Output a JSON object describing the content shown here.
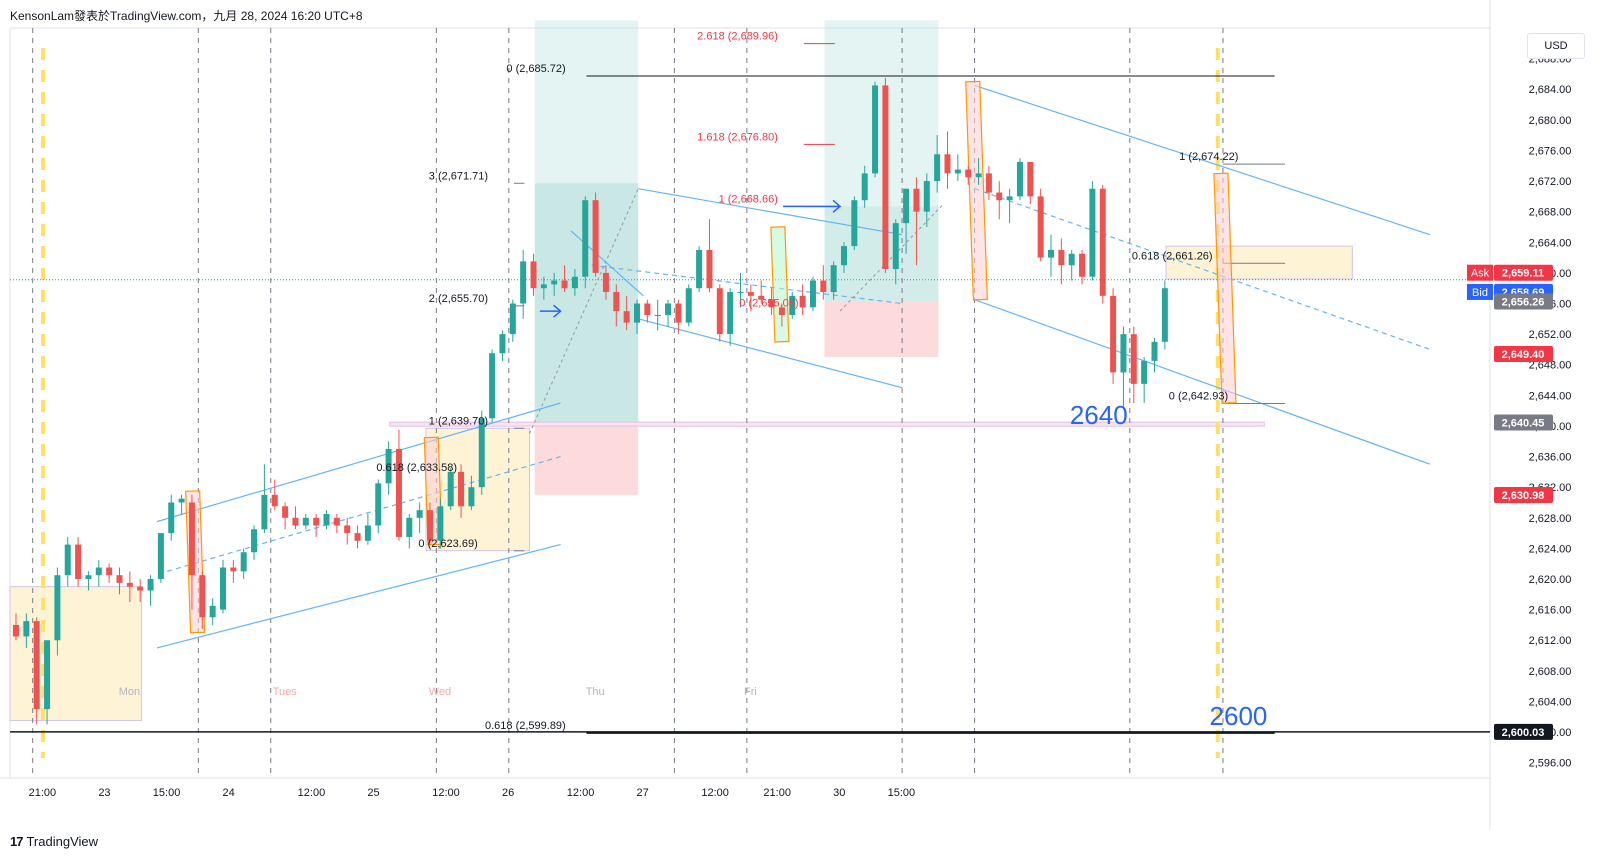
{
  "header": {
    "title": "KensonLam發表於TradingView.com，九月 28, 2024 16:20 UTC+8"
  },
  "footer": {
    "brand": "TradingView",
    "brand_mark": "17"
  },
  "colors": {
    "up": "#26a69a",
    "down": "#ef5350",
    "grid": "#f0f3fa",
    "channel": "#64b5f6",
    "target_zone": "#b2dfdb",
    "stop_zone": "#fccbcd",
    "order_block": "#fff3d6",
    "price_label_red": "#f23645",
    "price_label_gray": "#787b86",
    "bid_blue": "#2962ff"
  },
  "chart_data": {
    "type": "candlestick",
    "title": "",
    "currency_button": "USD",
    "ylim": [
      2594,
      2692
    ],
    "y_ticks": [
      2596,
      2600,
      2604,
      2608,
      2612,
      2616,
      2620,
      2624,
      2628,
      2632,
      2636,
      2640,
      2644,
      2648,
      2652,
      2656,
      2660,
      2664,
      2668,
      2672,
      2676,
      2680,
      2684,
      2688
    ],
    "x_labels": [
      "21:00",
      "23",
      "15:00",
      "24",
      "12:00",
      "25",
      "12:00",
      "26",
      "12:00",
      "27",
      "12:00",
      "21:00",
      "30",
      "15:00"
    ],
    "x_label_bars": [
      1,
      7,
      13,
      19,
      27,
      33,
      40,
      46,
      53,
      59,
      66,
      72,
      78,
      84
    ],
    "day_labels": [
      {
        "text": "Mon",
        "bar": 7
      },
      {
        "text": "Tues",
        "bar": 22
      },
      {
        "text": "Wed",
        "bar": 37
      },
      {
        "text": "Thu",
        "bar": 52
      },
      {
        "text": "Fri",
        "bar": 67
      }
    ],
    "candles": [
      [
        2614.0,
        2615.5,
        2612.0,
        2612.5
      ],
      [
        2612.5,
        2615.5,
        2611.0,
        2614.5
      ],
      [
        2614.5,
        2615.0,
        2601.0,
        2603.0
      ],
      [
        2603.0,
        2612.0,
        2601.0,
        2612.0
      ],
      [
        2612.0,
        2621.5,
        2610.0,
        2620.5
      ],
      [
        2620.5,
        2625.5,
        2619.0,
        2624.5
      ],
      [
        2624.5,
        2625.5,
        2619.0,
        2620.0
      ],
      [
        2620.0,
        2621.0,
        2618.5,
        2620.5
      ],
      [
        2620.5,
        2622.5,
        2619.0,
        2621.5
      ],
      [
        2621.5,
        2622.0,
        2619.5,
        2620.5
      ],
      [
        2620.5,
        2621.5,
        2618.0,
        2619.5
      ],
      [
        2619.5,
        2621.0,
        2617.0,
        2619.0
      ],
      [
        2619.0,
        2620.0,
        2617.0,
        2618.5
      ],
      [
        2618.5,
        2620.5,
        2616.5,
        2620.0
      ],
      [
        2620.0,
        2626.0,
        2619.5,
        2626.0
      ],
      [
        2626.0,
        2631.0,
        2625.0,
        2630.0
      ],
      [
        2630.0,
        2631.0,
        2628.5,
        2630.5
      ],
      [
        2630.0,
        2631.0,
        2616.0,
        2620.5
      ],
      [
        2620.5,
        2621.0,
        2613.5,
        2615.0
      ],
      [
        2615.0,
        2617.5,
        2614.0,
        2616.5
      ],
      [
        2616.0,
        2622.5,
        2615.5,
        2621.5
      ],
      [
        2621.5,
        2622.5,
        2619.5,
        2621.0
      ],
      [
        2621.0,
        2624.0,
        2620.0,
        2623.5
      ],
      [
        2623.5,
        2627.0,
        2622.5,
        2626.5
      ],
      [
        2626.5,
        2635.0,
        2626.0,
        2631.0
      ],
      [
        2631.0,
        2633.0,
        2629.0,
        2629.5
      ],
      [
        2629.5,
        2630.0,
        2626.5,
        2628.0
      ],
      [
        2628.0,
        2629.5,
        2626.5,
        2627.0
      ],
      [
        2627.0,
        2628.5,
        2626.5,
        2628.0
      ],
      [
        2628.0,
        2628.5,
        2625.5,
        2627.0
      ],
      [
        2627.0,
        2629.0,
        2626.5,
        2628.5
      ],
      [
        2628.0,
        2628.5,
        2626.0,
        2627.0
      ],
      [
        2627.0,
        2628.0,
        2624.5,
        2626.0
      ],
      [
        2626.0,
        2627.0,
        2624.0,
        2625.0
      ],
      [
        2625.0,
        2628.5,
        2624.5,
        2627.0
      ],
      [
        2627.0,
        2633.0,
        2626.0,
        2632.5
      ],
      [
        2632.5,
        2638.0,
        2631.0,
        2637.0
      ],
      [
        2637.0,
        2639.5,
        2625.0,
        2625.5
      ],
      [
        2625.5,
        2628.5,
        2624.0,
        2628.0
      ],
      [
        2628.0,
        2630.0,
        2626.0,
        2629.0
      ],
      [
        2629.0,
        2630.0,
        2624.5,
        2625.0
      ],
      [
        2625.0,
        2630.5,
        2624.0,
        2629.5
      ],
      [
        2629.5,
        2634.5,
        2629.0,
        2634.0
      ],
      [
        2634.0,
        2635.0,
        2628.0,
        2629.5
      ],
      [
        2629.5,
        2633.5,
        2629.0,
        2632.0
      ],
      [
        2632.0,
        2642.0,
        2631.0,
        2641.0
      ],
      [
        2641.0,
        2650.0,
        2640.5,
        2649.5
      ],
      [
        2649.5,
        2652.5,
        2648.5,
        2652.0
      ],
      [
        2652.0,
        2656.5,
        2651.0,
        2656.0
      ],
      [
        2656.0,
        2663.0,
        2654.0,
        2661.5
      ],
      [
        2661.5,
        2662.5,
        2657.0,
        2658.0
      ],
      [
        2658.0,
        2659.5,
        2656.5,
        2658.5
      ],
      [
        2658.5,
        2660.0,
        2657.0,
        2659.0
      ],
      [
        2659.0,
        2661.0,
        2657.5,
        2658.0
      ],
      [
        2658.0,
        2660.5,
        2657.0,
        2659.5
      ],
      [
        2659.5,
        2670.0,
        2658.0,
        2669.5
      ],
      [
        2669.5,
        2670.5,
        2659.5,
        2660.0
      ],
      [
        2660.0,
        2661.0,
        2656.5,
        2657.5
      ],
      [
        2657.5,
        2658.5,
        2653.0,
        2655.0
      ],
      [
        2655.0,
        2657.0,
        2652.5,
        2653.5
      ],
      [
        2653.5,
        2656.5,
        2652.0,
        2656.0
      ],
      [
        2656.0,
        2656.5,
        2653.5,
        2654.5
      ],
      [
        2654.5,
        2656.5,
        2652.5,
        2654.5
      ],
      [
        2654.5,
        2656.5,
        2653.0,
        2656.0
      ],
      [
        2656.0,
        2656.5,
        2652.0,
        2653.5
      ],
      [
        2653.5,
        2658.5,
        2653.0,
        2658.0
      ],
      [
        2658.0,
        2663.5,
        2657.5,
        2663.0
      ],
      [
        2663.0,
        2667.0,
        2657.5,
        2658.0
      ],
      [
        2658.0,
        2658.5,
        2651.0,
        2652.0
      ],
      [
        2652.0,
        2658.0,
        2650.5,
        2657.5
      ],
      [
        2657.5,
        2660.0,
        2655.5,
        2657.5
      ],
      [
        2657.5,
        2658.5,
        2655.0,
        2657.0
      ],
      [
        2657.0,
        2659.0,
        2656.0,
        2656.5
      ],
      [
        2656.5,
        2658.0,
        2654.5,
        2655.5
      ],
      [
        2655.5,
        2656.0,
        2653.0,
        2654.5
      ],
      [
        2654.5,
        2657.5,
        2654.0,
        2657.0
      ],
      [
        2657.0,
        2658.5,
        2654.5,
        2655.5
      ],
      [
        2655.5,
        2659.5,
        2655.0,
        2659.0
      ],
      [
        2659.0,
        2661.0,
        2656.5,
        2657.5
      ],
      [
        2657.5,
        2661.5,
        2656.5,
        2661.0
      ],
      [
        2661.0,
        2664.0,
        2660.0,
        2663.5
      ],
      [
        2663.5,
        2670.0,
        2663.0,
        2669.5
      ],
      [
        2669.5,
        2674.0,
        2668.5,
        2673.0
      ],
      [
        2673.0,
        2685.0,
        2672.5,
        2684.5
      ],
      [
        2684.5,
        2685.5,
        2660.0,
        2660.5
      ],
      [
        2660.5,
        2667.0,
        2658.5,
        2666.5
      ],
      [
        2666.5,
        2671.0,
        2662.5,
        2671.0
      ],
      [
        2671.0,
        2672.5,
        2661.0,
        2668.0
      ],
      [
        2668.0,
        2673.0,
        2666.0,
        2672.0
      ],
      [
        2672.0,
        2678.0,
        2670.5,
        2675.5
      ],
      [
        2675.5,
        2678.5,
        2671.0,
        2673.0
      ],
      [
        2673.0,
        2675.5,
        2672.0,
        2673.5
      ],
      [
        2673.5,
        2674.0,
        2671.5,
        2672.5
      ],
      [
        2672.5,
        2675.0,
        2671.5,
        2673.0
      ],
      [
        2673.0,
        2674.0,
        2669.5,
        2670.5
      ],
      [
        2670.5,
        2672.0,
        2667.0,
        2669.5
      ],
      [
        2669.5,
        2671.0,
        2666.5,
        2670.0
      ],
      [
        2670.0,
        2675.0,
        2669.5,
        2674.5
      ],
      [
        2674.5,
        2674.5,
        2669.0,
        2670.0
      ],
      [
        2670.0,
        2671.0,
        2661.5,
        2662.0
      ],
      [
        2662.0,
        2665.0,
        2659.5,
        2663.0
      ],
      [
        2663.0,
        2664.5,
        2658.5,
        2661.0
      ],
      [
        2661.0,
        2663.0,
        2659.0,
        2662.5
      ],
      [
        2662.5,
        2663.0,
        2658.5,
        2659.5
      ],
      [
        2659.5,
        2672.0,
        2659.0,
        2671.0
      ],
      [
        2671.0,
        2671.5,
        2656.0,
        2657.0
      ],
      [
        2657.0,
        2658.0,
        2645.5,
        2647.0
      ],
      [
        2647.0,
        2653.0,
        2642.5,
        2652.0
      ],
      [
        2652.0,
        2653.0,
        2643.0,
        2645.5
      ],
      [
        2645.5,
        2649.0,
        2643.0,
        2648.5
      ],
      [
        2648.5,
        2651.5,
        2647.0,
        2651.0
      ],
      [
        2651.0,
        2659.0,
        2650.0,
        2658.0
      ]
    ],
    "bar_positions_px_note": "",
    "channels": [
      {
        "name": "",
        "from": [
          2626.5,
          0
        ],
        "to": [
          2643.5,
          0
        ]
      }
    ],
    "levels": [
      {
        "text": "3 (2,671.71)",
        "value": 2671.71
      },
      {
        "text": "2 (2,655.70)",
        "value": 2655.7
      },
      {
        "text": "1 (2,639.70)",
        "value": 2639.7
      },
      {
        "text": "0.618 (2,633.58)",
        "value": 2633.58
      },
      {
        "text": "0 (2,623.69)",
        "value": 2623.69
      },
      {
        "text": "0 (2,685.72)",
        "value": 2685.72
      },
      {
        "text": "2.618 (2,689.96)",
        "value": 2689.96
      },
      {
        "text": "1.618 (2,676.80)",
        "value": 2676.8
      },
      {
        "text": "1 (2,668.66)",
        "value": 2668.66
      },
      {
        "text": "0 (2,655.08)",
        "value": 2655.08
      },
      {
        "text": "1 (2,674.22)",
        "value": 2674.22
      },
      {
        "text": "0.618 (2,661.26)",
        "value": 2661.26
      },
      {
        "text": "0 (2,642.93)",
        "value": 2642.93
      },
      {
        "text": "0.618 (2,599.89)",
        "value": 2599.89
      }
    ],
    "annotations": [
      {
        "text": "2640",
        "value": 2640
      },
      {
        "text": "2600",
        "value": 2600
      }
    ],
    "price_tags": [
      {
        "label": "Ask",
        "value": "2,659.11"
      },
      {
        "label": "Bid",
        "value": "2,658.69"
      },
      {
        "label": "",
        "value": "2,656.26"
      },
      {
        "label": "",
        "value": "2,649.40"
      },
      {
        "label": "",
        "value": "2,640.45"
      },
      {
        "label": "",
        "value": "2,630.98"
      },
      {
        "label": "",
        "value": "2,600.03"
      }
    ],
    "axis_labels": [
      "2,596.00",
      "2,600.00",
      "2,604.00",
      "2,608.00",
      "2,612.00",
      "2,616.00",
      "2,620.00",
      "2,624.00",
      "2,628.00",
      "2,632.00",
      "2,636.00",
      "2,640.00",
      "2,644.00",
      "2,648.00",
      "2,652.00",
      "2,656.00",
      "2,660.00",
      "2,664.00",
      "2,668.00",
      "2,672.00",
      "2,676.00",
      "2,680.00",
      "2,684.00",
      "2,688.00"
    ]
  }
}
